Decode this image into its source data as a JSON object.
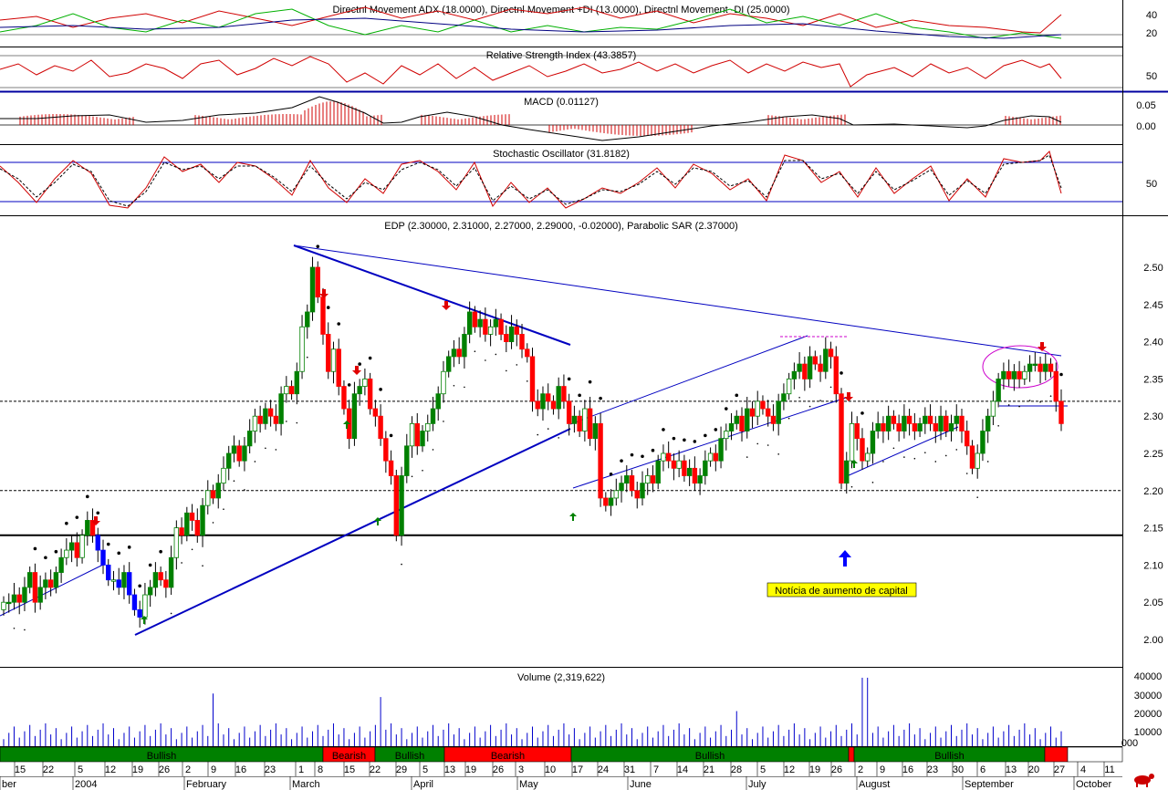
{
  "panels": {
    "adx": {
      "title": "Directnl Movement ADX (18.0000), Directnl Movement +DI (13.0000), Directnl Movement -DI (25.0000)",
      "ticks": [
        "40",
        "20"
      ]
    },
    "rsi": {
      "title": "Relative Strength Index (43.3857)",
      "ticks": [
        "50"
      ]
    },
    "macd": {
      "title": "MACD (0.01127)",
      "ticks": [
        "0.05",
        "0.00"
      ]
    },
    "stoch": {
      "title": "Stochastic Oscillator (31.8182)",
      "ticks": [
        "50"
      ]
    },
    "price": {
      "title": "EDP (2.30000, 2.31000, 2.27000, 2.29000, -0.02000), Parabolic SAR (2.37000)",
      "ticks": [
        "2.50",
        "2.45",
        "2.40",
        "2.35",
        "2.30",
        "2.25",
        "2.20",
        "2.15",
        "2.10",
        "2.05",
        "2.00"
      ]
    },
    "volume": {
      "title": "Volume (2,319,622)",
      "ticks": [
        "40000",
        "30000",
        "20000",
        "10000",
        "000"
      ]
    }
  },
  "annotation": {
    "text": "Notícia de aumento de capital"
  },
  "trend_bar": [
    {
      "label": "Bullish",
      "color": "#008000",
      "from": 0.0,
      "to": 354.0
    },
    {
      "label": "Bearish",
      "color": "#ff0000",
      "from": 354.0,
      "to": 411.0
    },
    {
      "label": "Bullish",
      "color": "#008000",
      "from": 411.0,
      "to": 487.0
    },
    {
      "label": "Bearish",
      "color": "#ff0000",
      "from": 487.0,
      "to": 626.0
    },
    {
      "label": "Bullish",
      "color": "#008000",
      "from": 626.0,
      "to": 930.0
    },
    {
      "label": "",
      "color": "#ff0000",
      "from": 930.0,
      "to": 936.0
    },
    {
      "label": "Bullish",
      "color": "#008000",
      "from": 936.0,
      "to": 1145.0
    },
    {
      "label": "",
      "color": "#ff0000",
      "from": 1145.0,
      "to": 1170.0
    }
  ],
  "x_axis": {
    "days": [
      {
        "t": "15",
        "x": 22
      },
      {
        "t": "22",
        "x": 53
      },
      {
        "t": "5",
        "x": 88
      },
      {
        "t": "12",
        "x": 121
      },
      {
        "t": "19",
        "x": 151
      },
      {
        "t": "26",
        "x": 180
      },
      {
        "t": "2",
        "x": 206
      },
      {
        "t": "9",
        "x": 234
      },
      {
        "t": "16",
        "x": 264
      },
      {
        "t": "23",
        "x": 296
      },
      {
        "t": "1",
        "x": 330
      },
      {
        "t": "8",
        "x": 351
      },
      {
        "t": "15",
        "x": 383
      },
      {
        "t": "22",
        "x": 411
      },
      {
        "t": "29",
        "x": 440
      },
      {
        "t": "5",
        "x": 466
      },
      {
        "t": "13",
        "x": 493
      },
      {
        "t": "19",
        "x": 516
      },
      {
        "t": "26",
        "x": 546
      },
      {
        "t": "3",
        "x": 571
      },
      {
        "t": "10",
        "x": 603
      },
      {
        "t": "17",
        "x": 633
      },
      {
        "t": "24",
        "x": 661
      },
      {
        "t": "31",
        "x": 690
      },
      {
        "t": "7",
        "x": 719
      },
      {
        "t": "14",
        "x": 748
      },
      {
        "t": "21",
        "x": 777
      },
      {
        "t": "28",
        "x": 807
      },
      {
        "t": "5",
        "x": 836
      },
      {
        "t": "12",
        "x": 865
      },
      {
        "t": "19",
        "x": 893
      },
      {
        "t": "26",
        "x": 917
      },
      {
        "t": "2",
        "x": 943
      },
      {
        "t": "9",
        "x": 967
      },
      {
        "t": "16",
        "x": 995
      },
      {
        "t": "23",
        "x": 1022
      },
      {
        "t": "30",
        "x": 1050
      },
      {
        "t": "6",
        "x": 1077
      },
      {
        "t": "13",
        "x": 1108
      },
      {
        "t": "20",
        "x": 1133
      },
      {
        "t": "27",
        "x": 1161
      },
      {
        "t": "4",
        "x": 1187
      },
      {
        "t": "11",
        "x": 1216
      }
    ],
    "months": [
      {
        "t": "ber",
        "x": 0
      },
      {
        "t": "2004",
        "x": 80
      },
      {
        "t": "February",
        "x": 202
      },
      {
        "t": "March",
        "x": 318
      },
      {
        "t": "April",
        "x": 451
      },
      {
        "t": "May",
        "x": 567
      },
      {
        "t": "June",
        "x": 688
      },
      {
        "t": "July",
        "x": 818
      },
      {
        "t": "August",
        "x": 939
      },
      {
        "t": "September",
        "x": 1055
      },
      {
        "t": "October",
        "x": 1177
      }
    ]
  },
  "chart_data": {
    "type": "candlestick",
    "title": "EDP (2.30000, 2.31000, 2.27000, 2.29000, -0.02000), Parabolic SAR (2.37000)",
    "ylim": [
      1.96,
      2.55
    ],
    "close": [
      2.05,
      2.05,
      2.06,
      2.05,
      2.07,
      2.09,
      2.05,
      2.07,
      2.08,
      2.07,
      2.09,
      2.11,
      2.12,
      2.13,
      2.11,
      2.14,
      2.16,
      2.14,
      2.12,
      2.1,
      2.08,
      2.08,
      2.07,
      2.09,
      2.06,
      2.04,
      2.03,
      2.06,
      2.07,
      2.09,
      2.08,
      2.07,
      2.11,
      2.15,
      2.14,
      2.17,
      2.16,
      2.14,
      2.18,
      2.2,
      2.19,
      2.21,
      2.23,
      2.25,
      2.26,
      2.24,
      2.26,
      2.28,
      2.3,
      2.29,
      2.31,
      2.3,
      2.29,
      2.33,
      2.34,
      2.33,
      2.36,
      2.42,
      2.44,
      2.5,
      2.46,
      2.41,
      2.36,
      2.39,
      2.34,
      2.31,
      2.27,
      2.33,
      2.34,
      2.35,
      2.31,
      2.3,
      2.27,
      2.24,
      2.22,
      2.14,
      2.22,
      2.26,
      2.29,
      2.26,
      2.28,
      2.29,
      2.31,
      2.33,
      2.36,
      2.38,
      2.39,
      2.38,
      2.41,
      2.44,
      2.42,
      2.43,
      2.41,
      2.42,
      2.43,
      2.41,
      2.4,
      2.42,
      2.41,
      2.39,
      2.38,
      2.32,
      2.31,
      2.33,
      2.32,
      2.31,
      2.34,
      2.32,
      2.29,
      2.3,
      2.28,
      2.31,
      2.27,
      2.29,
      2.19,
      2.18,
      2.19,
      2.2,
      2.21,
      2.22,
      2.2,
      2.19,
      2.21,
      2.22,
      2.21,
      2.24,
      2.25,
      2.24,
      2.23,
      2.24,
      2.22,
      2.23,
      2.21,
      2.22,
      2.24,
      2.25,
      2.24,
      2.27,
      2.28,
      2.29,
      2.3,
      2.28,
      2.31,
      2.3,
      2.32,
      2.31,
      2.3,
      2.29,
      2.32,
      2.33,
      2.35,
      2.36,
      2.37,
      2.35,
      2.38,
      2.37,
      2.36,
      2.39,
      2.38,
      2.33,
      2.21,
      2.24,
      2.29,
      2.27,
      2.24,
      2.25,
      2.28,
      2.29,
      2.28,
      2.3,
      2.29,
      2.28,
      2.3,
      2.29,
      2.28,
      2.29,
      2.3,
      2.29,
      2.28,
      2.3,
      2.28,
      2.29,
      2.3,
      2.28,
      2.26,
      2.23,
      2.25,
      2.28,
      2.3,
      2.32,
      2.35,
      2.36,
      2.35,
      2.36,
      2.35,
      2.36,
      2.37,
      2.37,
      2.36,
      2.37,
      2.36,
      2.32,
      2.29
    ],
    "parabolic_sar_last": 2.37,
    "horizontal_levels": [
      2.32,
      2.2,
      2.14
    ]
  }
}
